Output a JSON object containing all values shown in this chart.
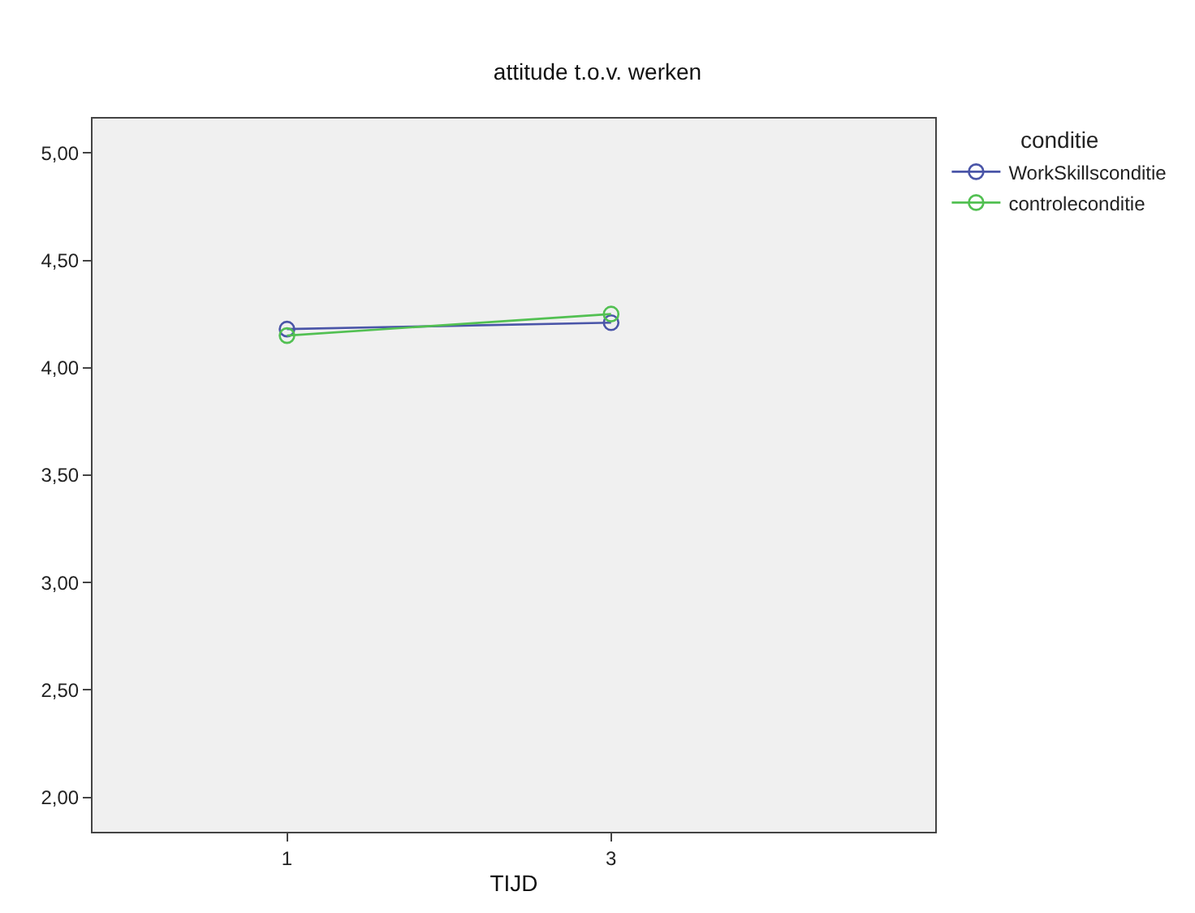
{
  "chart_data": {
    "type": "line",
    "title": "attitude t.o.v. werken",
    "xlabel": "TIJD",
    "legend_title": "conditie",
    "categories": [
      "1",
      "3"
    ],
    "series": [
      {
        "name": "WorkSkillsconditie",
        "color": "#4a55a8",
        "values": [
          4.18,
          4.21
        ]
      },
      {
        "name": "controleconditie",
        "color": "#52c052",
        "values": [
          4.15,
          4.25
        ]
      }
    ],
    "ylim": [
      1.84,
      5.16
    ],
    "yticks": [
      {
        "value": 2,
        "label": "2,00"
      },
      {
        "value": 2.5,
        "label": "2,50"
      },
      {
        "value": 3,
        "label": "3,00"
      },
      {
        "value": 3.5,
        "label": "3,50"
      },
      {
        "value": 4,
        "label": "4,00"
      },
      {
        "value": 4.5,
        "label": "4,50"
      },
      {
        "value": 5,
        "label": "5,00"
      }
    ],
    "grid": false,
    "legend": "top right",
    "marker": "circle",
    "line_style": "solid"
  }
}
